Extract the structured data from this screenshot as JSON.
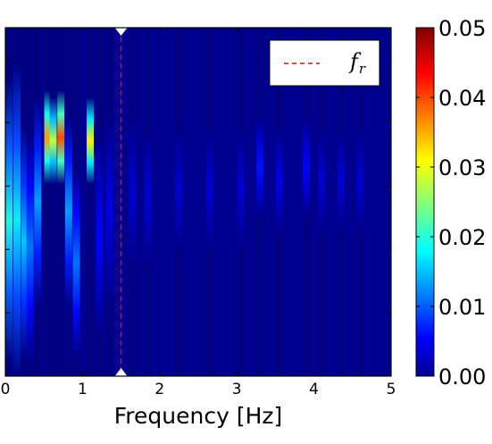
{
  "chart_data": {
    "type": "heatmap",
    "xlabel": "Frequency [Hz]",
    "ylabel": "",
    "xlim": [
      0,
      5
    ],
    "x_ticks": [
      "0",
      "1",
      "2",
      "3",
      "4",
      "5"
    ],
    "colorbar": {
      "range": [
        0.0,
        0.05
      ],
      "ticks": [
        "0.00",
        "0.01",
        "0.02",
        "0.03",
        "0.04",
        "0.05"
      ],
      "colormap": "jet"
    },
    "reference_line": {
      "name": "f",
      "subscript": "r",
      "x": 1.5,
      "color": "#ff0000",
      "style": "dashed"
    },
    "legend": {
      "position": "top-right",
      "entries": [
        {
          "symbol": "f",
          "subscript": "r"
        }
      ]
    },
    "background_value": 0.0,
    "columns": [
      {
        "x": 0.05,
        "peak": 0.02,
        "band": [
          0.04,
          0.85
        ]
      },
      {
        "x": 0.15,
        "peak": 0.018,
        "band": [
          0.0,
          0.9
        ]
      },
      {
        "x": 0.25,
        "peak": 0.016,
        "band": [
          0.05,
          0.72
        ]
      },
      {
        "x": 0.32,
        "peak": 0.012,
        "band": [
          0.04,
          0.7
        ]
      },
      {
        "x": 0.42,
        "peak": 0.014,
        "band": [
          0.2,
          0.8
        ]
      },
      {
        "x": 0.55,
        "peak": 0.036,
        "band": [
          0.55,
          0.82
        ]
      },
      {
        "x": 0.62,
        "peak": 0.028,
        "band": [
          0.55,
          0.8
        ]
      },
      {
        "x": 0.72,
        "peak": 0.04,
        "band": [
          0.55,
          0.82
        ]
      },
      {
        "x": 0.82,
        "peak": 0.014,
        "band": [
          0.2,
          0.75
        ]
      },
      {
        "x": 0.92,
        "peak": 0.012,
        "band": [
          0.05,
          0.6
        ]
      },
      {
        "x": 1.1,
        "peak": 0.032,
        "band": [
          0.55,
          0.8
        ]
      },
      {
        "x": 1.22,
        "peak": 0.006,
        "band": [
          0.1,
          0.7
        ]
      },
      {
        "x": 1.35,
        "peak": 0.005,
        "band": [
          0.2,
          0.75
        ]
      },
      {
        "x": 1.65,
        "peak": 0.004,
        "band": [
          0.3,
          0.75
        ]
      },
      {
        "x": 1.85,
        "peak": 0.004,
        "band": [
          0.3,
          0.72
        ]
      },
      {
        "x": 2.25,
        "peak": 0.004,
        "band": [
          0.35,
          0.72
        ]
      },
      {
        "x": 2.65,
        "peak": 0.004,
        "band": [
          0.35,
          0.72
        ]
      },
      {
        "x": 3.05,
        "peak": 0.004,
        "band": [
          0.35,
          0.72
        ]
      },
      {
        "x": 3.3,
        "peak": 0.007,
        "band": [
          0.45,
          0.75
        ]
      },
      {
        "x": 3.55,
        "peak": 0.005,
        "band": [
          0.4,
          0.72
        ]
      },
      {
        "x": 3.9,
        "peak": 0.006,
        "band": [
          0.45,
          0.75
        ]
      },
      {
        "x": 4.1,
        "peak": 0.004,
        "band": [
          0.4,
          0.72
        ]
      },
      {
        "x": 4.35,
        "peak": 0.004,
        "band": [
          0.4,
          0.72
        ]
      },
      {
        "x": 4.6,
        "peak": 0.004,
        "band": [
          0.4,
          0.72
        ]
      }
    ]
  }
}
